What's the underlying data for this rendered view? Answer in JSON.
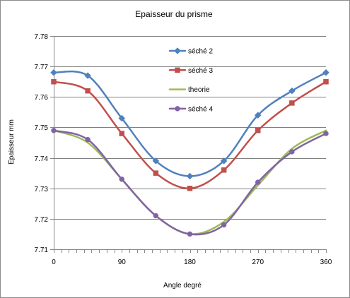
{
  "chart_data": {
    "type": "line",
    "title": "Epaisseur du prisme",
    "xlabel": "Angle degré",
    "ylabel": "Epaisseur mm",
    "x": [
      0,
      45,
      90,
      135,
      180,
      225,
      270,
      315,
      360
    ],
    "xlim": [
      0,
      360
    ],
    "ylim": [
      7.71,
      7.78
    ],
    "xticks": [
      0,
      90,
      180,
      270,
      360
    ],
    "x_minor_step": 10,
    "yticks": [
      7.71,
      7.72,
      7.73,
      7.74,
      7.75,
      7.76,
      7.77,
      7.78
    ],
    "grid": "horizontal",
    "legend": "top-center",
    "smooth": true,
    "series": [
      {
        "name": "séché 2",
        "color": "#4F81BD",
        "marker": "diamond",
        "values": [
          7.768,
          7.767,
          7.753,
          7.739,
          7.734,
          7.739,
          7.754,
          7.762,
          7.768
        ]
      },
      {
        "name": "séché 3",
        "color": "#C0504D",
        "marker": "square",
        "values": [
          7.765,
          7.762,
          7.748,
          7.735,
          7.73,
          7.736,
          7.749,
          7.758,
          7.765
        ]
      },
      {
        "name": "theorie",
        "color": "#9BBB59",
        "marker": "none",
        "values": [
          7.749,
          7.745,
          7.733,
          7.721,
          7.715,
          7.719,
          7.731,
          7.743,
          7.749
        ]
      },
      {
        "name": "séché 4",
        "color": "#8064A2",
        "marker": "circle",
        "values": [
          7.749,
          7.746,
          7.733,
          7.721,
          7.715,
          7.718,
          7.732,
          7.742,
          7.748
        ]
      }
    ]
  }
}
